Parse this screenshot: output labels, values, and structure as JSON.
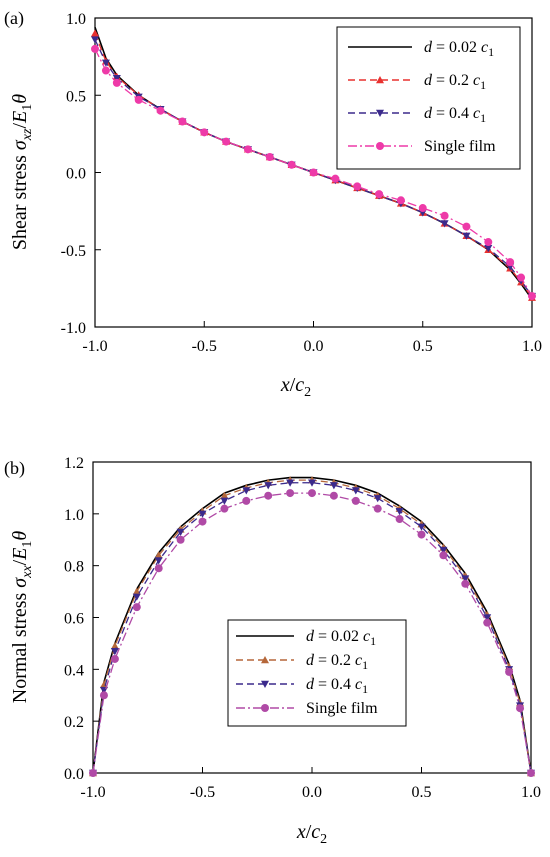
{
  "chart_data": [
    {
      "type": "line",
      "panel_label": "(a)",
      "xlabel": "x/c₂",
      "ylabel": "Shear stress σxz/E₁θ",
      "xlim": [
        -1.0,
        1.0
      ],
      "ylim": [
        -1.0,
        1.0
      ],
      "xticks": [
        "-1.0",
        "-0.5",
        "0.0",
        "0.5",
        "1.0"
      ],
      "yticks": [
        "1.0",
        "0.5",
        "0.0",
        "-0.5",
        "-1.0"
      ],
      "grid": false,
      "legend_position": "top-right",
      "legend": [
        "d = 0.02 c₁",
        "d = 0.2 c₁",
        "d = 0.4 c₁",
        "Single film"
      ],
      "series": [
        {
          "name": "d = 0.02 c₁",
          "color": "#000000",
          "marker": "none",
          "x": [
            -1.0,
            -0.95,
            -0.9,
            -0.8,
            -0.7,
            -0.6,
            -0.5,
            -0.4,
            -0.3,
            -0.2,
            -0.1,
            0.0,
            0.1,
            0.2,
            0.3,
            0.4,
            0.5,
            0.6,
            0.7,
            0.8,
            0.9,
            0.95,
            1.0
          ],
          "y": [
            0.94,
            0.74,
            0.63,
            0.5,
            0.41,
            0.33,
            0.26,
            0.2,
            0.15,
            0.1,
            0.05,
            0.0,
            -0.05,
            -0.1,
            -0.15,
            -0.2,
            -0.26,
            -0.33,
            -0.41,
            -0.5,
            -0.63,
            -0.72,
            -0.82
          ]
        },
        {
          "name": "d = 0.2 c₁",
          "color": "#e8312f",
          "marker": "triangle-up",
          "x": [
            -1.0,
            -0.95,
            -0.9,
            -0.8,
            -0.7,
            -0.6,
            -0.5,
            -0.4,
            -0.3,
            -0.2,
            -0.1,
            0.0,
            0.1,
            0.2,
            0.3,
            0.4,
            0.5,
            0.6,
            0.7,
            0.8,
            0.9,
            0.95,
            1.0
          ],
          "y": [
            0.9,
            0.72,
            0.62,
            0.5,
            0.41,
            0.33,
            0.26,
            0.2,
            0.15,
            0.1,
            0.05,
            0.0,
            -0.05,
            -0.1,
            -0.15,
            -0.2,
            -0.26,
            -0.33,
            -0.41,
            -0.5,
            -0.62,
            -0.71,
            -0.81
          ]
        },
        {
          "name": "d = 0.4 c₁",
          "color": "#3b2a8c",
          "marker": "triangle-down",
          "x": [
            -1.0,
            -0.95,
            -0.9,
            -0.8,
            -0.7,
            -0.6,
            -0.5,
            -0.4,
            -0.3,
            -0.2,
            -0.1,
            0.0,
            0.1,
            0.2,
            0.3,
            0.4,
            0.5,
            0.6,
            0.7,
            0.8,
            0.9,
            0.95,
            1.0
          ],
          "y": [
            0.86,
            0.71,
            0.61,
            0.49,
            0.41,
            0.33,
            0.26,
            0.2,
            0.15,
            0.1,
            0.05,
            0.0,
            -0.05,
            -0.1,
            -0.15,
            -0.2,
            -0.26,
            -0.33,
            -0.41,
            -0.49,
            -0.61,
            -0.7,
            -0.8
          ]
        },
        {
          "name": "Single film",
          "color": "#ee3aa8",
          "marker": "circle",
          "x": [
            -1.0,
            -0.95,
            -0.9,
            -0.8,
            -0.7,
            -0.6,
            -0.5,
            -0.4,
            -0.3,
            -0.2,
            -0.1,
            0.0,
            0.1,
            0.2,
            0.3,
            0.4,
            0.5,
            0.6,
            0.7,
            0.8,
            0.9,
            0.95,
            1.0
          ],
          "y": [
            0.8,
            0.66,
            0.58,
            0.47,
            0.4,
            0.33,
            0.26,
            0.2,
            0.15,
            0.1,
            0.05,
            0.0,
            -0.04,
            -0.09,
            -0.14,
            -0.18,
            -0.23,
            -0.28,
            -0.35,
            -0.45,
            -0.58,
            -0.68,
            -0.8
          ]
        }
      ]
    },
    {
      "type": "line",
      "panel_label": "(b)",
      "xlabel": "x/c₂",
      "ylabel": "Normal stress σxx/E₁θ",
      "xlim": [
        -1.0,
        1.0
      ],
      "ylim": [
        0.0,
        1.2
      ],
      "xticks": [
        "-1.0",
        "-0.5",
        "0.0",
        "0.5",
        "1.0"
      ],
      "yticks": [
        "1.2",
        "1.0",
        "0.8",
        "0.6",
        "0.4",
        "0.2",
        "0.0"
      ],
      "grid": false,
      "legend_position": "center-bottom",
      "legend": [
        "d = 0.02 c₁",
        "d = 0.2 c₁",
        "d = 0.4 c₁",
        "Single film"
      ],
      "series": [
        {
          "name": "d = 0.02 c₁",
          "color": "#000000",
          "marker": "none",
          "x": [
            -1.0,
            -0.95,
            -0.9,
            -0.8,
            -0.7,
            -0.6,
            -0.5,
            -0.4,
            -0.3,
            -0.2,
            -0.1,
            0.0,
            0.1,
            0.2,
            0.3,
            0.4,
            0.5,
            0.6,
            0.7,
            0.8,
            0.9,
            0.95,
            1.0
          ],
          "y": [
            0.0,
            0.35,
            0.5,
            0.71,
            0.85,
            0.95,
            1.02,
            1.08,
            1.11,
            1.13,
            1.14,
            1.14,
            1.13,
            1.11,
            1.08,
            1.03,
            0.97,
            0.88,
            0.77,
            0.62,
            0.42,
            0.28,
            0.0
          ]
        },
        {
          "name": "d = 0.2 c₁",
          "color": "#b5673a",
          "marker": "triangle-up",
          "x": [
            -1.0,
            -0.95,
            -0.9,
            -0.8,
            -0.7,
            -0.6,
            -0.5,
            -0.4,
            -0.3,
            -0.2,
            -0.1,
            0.0,
            0.1,
            0.2,
            0.3,
            0.4,
            0.5,
            0.6,
            0.7,
            0.8,
            0.9,
            0.95,
            1.0
          ],
          "y": [
            0.0,
            0.34,
            0.49,
            0.7,
            0.84,
            0.94,
            1.01,
            1.07,
            1.1,
            1.12,
            1.13,
            1.13,
            1.12,
            1.1,
            1.07,
            1.02,
            0.96,
            0.87,
            0.76,
            0.61,
            0.41,
            0.27,
            0.0
          ]
        },
        {
          "name": "d = 0.4 c₁",
          "color": "#3b2a8c",
          "marker": "triangle-down",
          "x": [
            -1.0,
            -0.95,
            -0.9,
            -0.8,
            -0.7,
            -0.6,
            -0.5,
            -0.4,
            -0.3,
            -0.2,
            -0.1,
            0.0,
            0.1,
            0.2,
            0.3,
            0.4,
            0.5,
            0.6,
            0.7,
            0.8,
            0.9,
            0.95,
            1.0
          ],
          "y": [
            0.0,
            0.32,
            0.47,
            0.68,
            0.82,
            0.93,
            1.0,
            1.05,
            1.09,
            1.11,
            1.12,
            1.12,
            1.11,
            1.09,
            1.06,
            1.01,
            0.95,
            0.86,
            0.75,
            0.6,
            0.4,
            0.26,
            0.0
          ]
        },
        {
          "name": "Single film",
          "color": "#b04aa6",
          "marker": "circle",
          "x": [
            -1.0,
            -0.95,
            -0.9,
            -0.8,
            -0.7,
            -0.6,
            -0.5,
            -0.4,
            -0.3,
            -0.2,
            -0.1,
            0.0,
            0.1,
            0.2,
            0.3,
            0.4,
            0.5,
            0.6,
            0.7,
            0.8,
            0.9,
            0.95,
            1.0
          ],
          "y": [
            0.0,
            0.3,
            0.44,
            0.64,
            0.79,
            0.9,
            0.97,
            1.02,
            1.05,
            1.07,
            1.08,
            1.08,
            1.07,
            1.05,
            1.02,
            0.98,
            0.92,
            0.84,
            0.73,
            0.58,
            0.39,
            0.25,
            0.0
          ]
        }
      ]
    }
  ]
}
